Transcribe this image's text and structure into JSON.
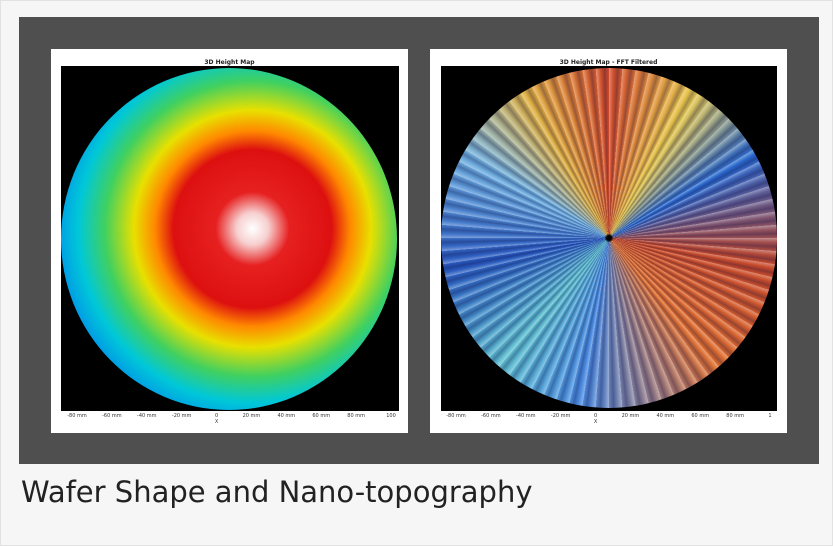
{
  "figures": [
    {
      "title": "3D Height Map",
      "x_ticks": [
        "-80 mm",
        "-60 mm",
        "-40 mm",
        "-20 mm",
        "0",
        "20 mm",
        "40 mm",
        "60 mm",
        "80 mm",
        "100"
      ],
      "x_label": "X"
    },
    {
      "title": "3D Height Map - FFT Filtered",
      "x_ticks": [
        "-80 mm",
        "-60 mm",
        "-40 mm",
        "-20 mm",
        "0",
        "20 mm",
        "40 mm",
        "60 mm",
        "80 mm",
        "1"
      ],
      "x_label": "X"
    }
  ],
  "caption": "Wafer Shape and Nano-topography"
}
